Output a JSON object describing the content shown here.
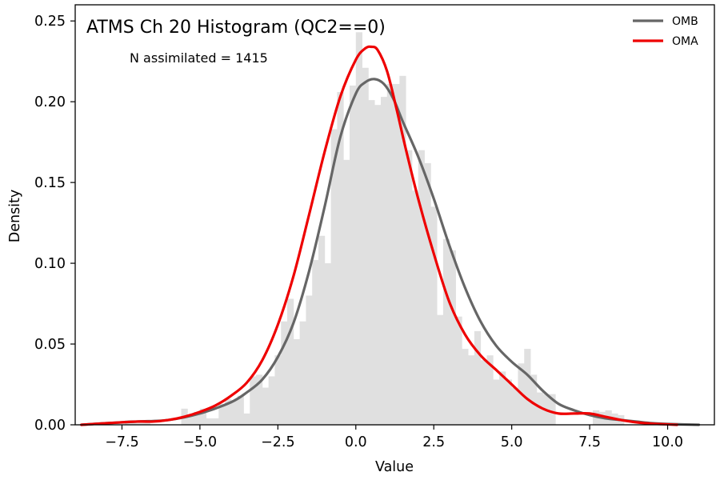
{
  "chart_data": {
    "type": "histogram",
    "title": "ATMS Ch 20 Histogram (QC2==0)",
    "annotation": "N assimilated = 1415",
    "xlabel": "Value",
    "ylabel": "Density",
    "xlim": [
      -9.0,
      11.5
    ],
    "ylim": [
      0,
      0.26
    ],
    "xticks": [
      -7.5,
      -5.0,
      -2.5,
      0.0,
      2.5,
      5.0,
      7.5,
      10.0
    ],
    "xtick_labels": [
      "−7.5",
      "−5.0",
      "−2.5",
      "0.0",
      "2.5",
      "5.0",
      "7.5",
      "10.0"
    ],
    "yticks": [
      0.0,
      0.05,
      0.1,
      0.15,
      0.2,
      0.25
    ],
    "ytick_labels": [
      "0.00",
      "0.05",
      "0.10",
      "0.15",
      "0.20",
      "0.25"
    ],
    "grid": false,
    "legend_position": "top-right",
    "histogram": {
      "color": "#e0e0e0",
      "bin_width": 0.2,
      "bin_starts": [
        -7.4,
        -7.2,
        -7.0,
        -6.8,
        -5.6,
        -5.4,
        -5.2,
        -5.0,
        -4.8,
        -4.6,
        -4.4,
        -4.2,
        -4.0,
        -3.8,
        -3.6,
        -3.4,
        -3.2,
        -3.0,
        -2.8,
        -2.6,
        -2.4,
        -2.2,
        -2.0,
        -1.8,
        -1.6,
        -1.4,
        -1.2,
        -1.0,
        -0.8,
        -0.6,
        -0.4,
        -0.2,
        0.0,
        0.2,
        0.4,
        0.6,
        0.8,
        1.0,
        1.2,
        1.4,
        1.6,
        1.8,
        2.0,
        2.2,
        2.4,
        2.6,
        2.8,
        3.0,
        3.2,
        3.4,
        3.6,
        3.8,
        4.0,
        4.2,
        4.4,
        4.6,
        4.8,
        5.0,
        5.2,
        5.4,
        5.6,
        5.8,
        6.0,
        6.2,
        7.6,
        7.8,
        8.0,
        8.2,
        8.4
      ],
      "densities": [
        0.003,
        0.003,
        0.003,
        0.003,
        0.01,
        0.006,
        0.008,
        0.01,
        0.004,
        0.004,
        0.013,
        0.016,
        0.015,
        0.018,
        0.007,
        0.03,
        0.031,
        0.023,
        0.03,
        0.043,
        0.064,
        0.078,
        0.053,
        0.064,
        0.08,
        0.102,
        0.117,
        0.1,
        0.183,
        0.206,
        0.164,
        0.21,
        0.243,
        0.221,
        0.201,
        0.198,
        0.203,
        0.211,
        0.211,
        0.216,
        0.17,
        0.145,
        0.17,
        0.162,
        0.135,
        0.068,
        0.115,
        0.108,
        0.067,
        0.047,
        0.043,
        0.058,
        0.04,
        0.043,
        0.028,
        0.033,
        0.028,
        0.023,
        0.038,
        0.047,
        0.031,
        0.02,
        0.019,
        0.019,
        0.009,
        0.008,
        0.009,
        0.007,
        0.006
      ]
    },
    "series": [
      {
        "name": "OMB",
        "color": "#666666",
        "x": [
          -8.8,
          -8.0,
          -7.0,
          -6.0,
          -5.0,
          -4.0,
          -3.5,
          -3.0,
          -2.5,
          -2.0,
          -1.5,
          -1.0,
          -0.5,
          0.0,
          0.3,
          0.6,
          0.9,
          1.2,
          1.5,
          2.0,
          2.5,
          3.0,
          3.5,
          4.0,
          4.5,
          5.0,
          5.5,
          6.0,
          6.5,
          7.0,
          7.5,
          8.0,
          8.5,
          9.0,
          9.5,
          10.0,
          11.0
        ],
        "y": [
          0.0,
          0.001,
          0.002,
          0.003,
          0.007,
          0.014,
          0.02,
          0.028,
          0.042,
          0.063,
          0.095,
          0.135,
          0.178,
          0.205,
          0.212,
          0.214,
          0.211,
          0.202,
          0.188,
          0.166,
          0.14,
          0.111,
          0.085,
          0.064,
          0.049,
          0.039,
          0.031,
          0.021,
          0.013,
          0.009,
          0.006,
          0.004,
          0.003,
          0.002,
          0.001,
          0.0005,
          0.0
        ]
      },
      {
        "name": "OMA",
        "color": "#ee0000",
        "x": [
          -8.8,
          -8.0,
          -7.0,
          -6.5,
          -6.0,
          -5.5,
          -5.0,
          -4.5,
          -4.0,
          -3.5,
          -3.0,
          -2.5,
          -2.0,
          -1.5,
          -1.0,
          -0.5,
          0.0,
          0.3,
          0.5,
          0.7,
          1.0,
          1.3,
          1.6,
          2.0,
          2.5,
          3.0,
          3.5,
          4.0,
          4.5,
          5.0,
          5.5,
          6.0,
          6.5,
          7.0,
          7.5,
          8.0,
          8.5,
          9.0,
          9.5,
          10.3
        ],
        "y": [
          0.0,
          0.001,
          0.002,
          0.002,
          0.003,
          0.005,
          0.008,
          0.012,
          0.018,
          0.026,
          0.04,
          0.062,
          0.092,
          0.13,
          0.169,
          0.203,
          0.226,
          0.233,
          0.234,
          0.232,
          0.219,
          0.196,
          0.171,
          0.14,
          0.106,
          0.076,
          0.056,
          0.043,
          0.034,
          0.025,
          0.016,
          0.01,
          0.007,
          0.007,
          0.007,
          0.005,
          0.003,
          0.0015,
          0.0007,
          0.0
        ]
      }
    ]
  }
}
